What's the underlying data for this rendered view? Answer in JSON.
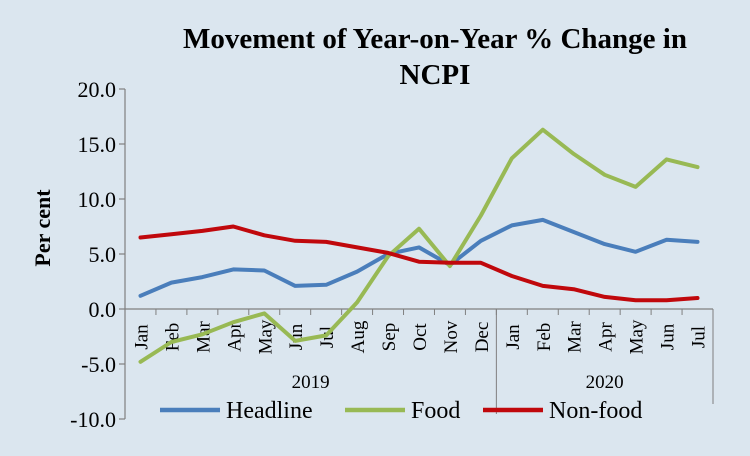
{
  "chart_data": {
    "type": "line",
    "title_line1": "Movement of Year-on-Year % Change in",
    "title_line2": "NCPI",
    "ylabel": "Per cent",
    "ylim": [
      -10,
      20
    ],
    "yticks": [
      "20.0",
      "15.0",
      "10.0",
      "5.0",
      "0.0",
      "-5.0",
      "-10.0"
    ],
    "yticks_values": [
      20,
      15,
      10,
      5,
      0,
      -5,
      -10
    ],
    "categories": [
      "Jan",
      "Feb",
      "Mar",
      "Apr",
      "May",
      "Jun",
      "Jul",
      "Aug",
      "Sep",
      "Oct",
      "Nov",
      "Dec",
      "Jan",
      "Feb",
      "Mar",
      "Apr",
      "May",
      "Jun",
      "Jul"
    ],
    "year_groups": [
      {
        "label": "2019",
        "start": 0,
        "end": 11
      },
      {
        "label": "2020",
        "start": 12,
        "end": 18
      }
    ],
    "legend_position": "bottom",
    "series": [
      {
        "name": "Headline",
        "color": "#4a7ebb",
        "values": [
          1.2,
          2.4,
          2.9,
          3.6,
          3.5,
          2.1,
          2.2,
          3.4,
          5.0,
          5.6,
          4.0,
          6.2,
          7.6,
          8.1,
          7.0,
          5.9,
          5.2,
          6.3,
          6.1
        ]
      },
      {
        "name": "Food",
        "color": "#98b954",
        "values": [
          -4.8,
          -3.0,
          -2.3,
          -1.2,
          -0.4,
          -2.9,
          -2.4,
          0.6,
          4.8,
          7.3,
          3.9,
          8.5,
          13.7,
          16.3,
          14.1,
          12.2,
          11.1,
          13.6,
          12.9
        ]
      },
      {
        "name": "Non-food",
        "color": "#c0080c",
        "values": [
          6.5,
          6.8,
          7.1,
          7.5,
          6.7,
          6.2,
          6.1,
          5.6,
          5.1,
          4.3,
          4.2,
          4.2,
          3.0,
          2.1,
          1.8,
          1.1,
          0.8,
          0.8,
          1.0
        ]
      }
    ]
  }
}
